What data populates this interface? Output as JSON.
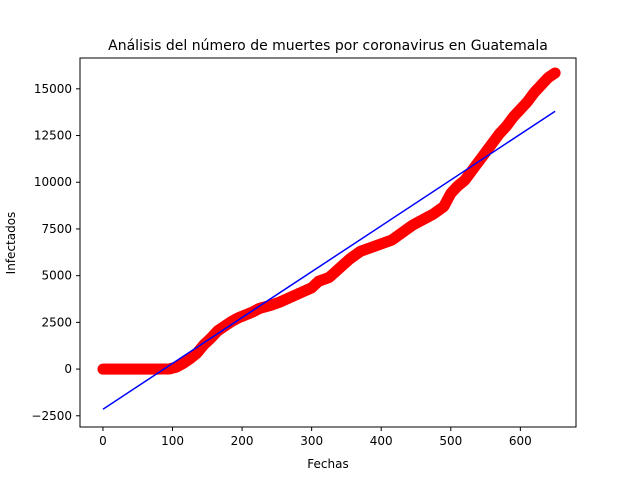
{
  "chart_data": {
    "type": "scatter",
    "title": "Análisis del número de muertes por coronavirus en Guatemala",
    "xlabel": "Fechas",
    "ylabel": "Infectados",
    "xlim": [
      -33,
      680
    ],
    "ylim": [
      -3100,
      16650
    ],
    "xticks": [
      0,
      100,
      200,
      300,
      400,
      500,
      600
    ],
    "yticks": [
      -2500,
      0,
      2500,
      5000,
      7500,
      10000,
      12500,
      15000
    ],
    "grid": false,
    "series": [
      {
        "kind": "scatter",
        "color": "#ff0000",
        "points": [
          [
            0,
            0
          ],
          [
            20,
            0
          ],
          [
            40,
            0
          ],
          [
            60,
            0
          ],
          [
            80,
            0
          ],
          [
            95,
            5
          ],
          [
            105,
            100
          ],
          [
            115,
            300
          ],
          [
            125,
            550
          ],
          [
            135,
            850
          ],
          [
            145,
            1300
          ],
          [
            155,
            1650
          ],
          [
            165,
            2050
          ],
          [
            175,
            2300
          ],
          [
            185,
            2550
          ],
          [
            195,
            2750
          ],
          [
            205,
            2900
          ],
          [
            215,
            3050
          ],
          [
            225,
            3250
          ],
          [
            240,
            3400
          ],
          [
            255,
            3600
          ],
          [
            270,
            3850
          ],
          [
            285,
            4100
          ],
          [
            300,
            4350
          ],
          [
            310,
            4700
          ],
          [
            325,
            4900
          ],
          [
            340,
            5400
          ],
          [
            355,
            5900
          ],
          [
            370,
            6300
          ],
          [
            385,
            6500
          ],
          [
            400,
            6700
          ],
          [
            415,
            6900
          ],
          [
            430,
            7300
          ],
          [
            445,
            7700
          ],
          [
            460,
            8000
          ],
          [
            475,
            8300
          ],
          [
            490,
            8700
          ],
          [
            500,
            9400
          ],
          [
            510,
            9800
          ],
          [
            520,
            10100
          ],
          [
            530,
            10600
          ],
          [
            540,
            11100
          ],
          [
            550,
            11600
          ],
          [
            560,
            12100
          ],
          [
            570,
            12600
          ],
          [
            580,
            13000
          ],
          [
            590,
            13500
          ],
          [
            600,
            13900
          ],
          [
            610,
            14300
          ],
          [
            620,
            14800
          ],
          [
            630,
            15200
          ],
          [
            640,
            15600
          ],
          [
            650,
            15850
          ]
        ]
      },
      {
        "kind": "line",
        "color": "#0000ff",
        "points": [
          [
            0,
            -2150
          ],
          [
            650,
            13800
          ]
        ]
      }
    ]
  }
}
